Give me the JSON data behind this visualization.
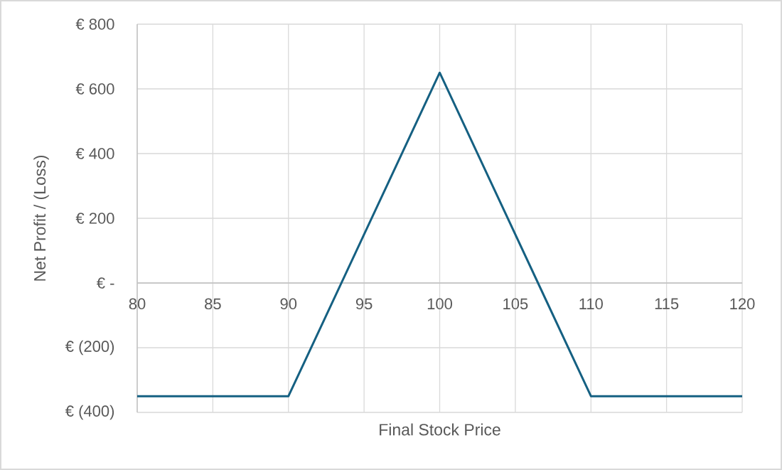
{
  "chart_data": {
    "type": "line",
    "xlabel": "Final Stock Price",
    "ylabel": "Net Profit / (Loss)",
    "x": [
      80,
      90,
      100,
      110,
      120
    ],
    "series": [
      {
        "color": "#156082",
        "values": [
          -350,
          -350,
          650,
          -350,
          -350
        ]
      }
    ],
    "xlim": [
      80,
      120
    ],
    "ylim": [
      -400,
      800
    ],
    "xticks": [
      80,
      85,
      90,
      95,
      100,
      105,
      110,
      115,
      120
    ],
    "yticks": [
      {
        "value": -400,
        "label": "€ (400)"
      },
      {
        "value": -200,
        "label": "€ (200)"
      },
      {
        "value": 0,
        "label": "€ -"
      },
      {
        "value": 200,
        "label": "€ 200"
      },
      {
        "value": 400,
        "label": "€ 400"
      },
      {
        "value": 600,
        "label": "€ 600"
      },
      {
        "value": 800,
        "label": "€ 800"
      }
    ],
    "grid": true,
    "marker": "none",
    "line_style": "solid"
  }
}
